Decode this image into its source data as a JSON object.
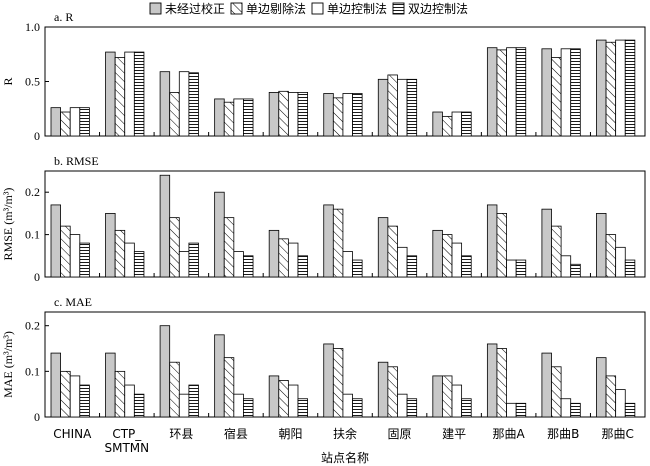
{
  "chart_data": {
    "type": "bar",
    "xlabel": "站点名称",
    "categories": [
      "CHINA",
      "CTP_\nSMTMN",
      "环县",
      "宿县",
      "朝阳",
      "扶余",
      "固原",
      "建平",
      "那曲A",
      "那曲B",
      "那曲C"
    ],
    "legend": {
      "placement": "top",
      "entries": [
        "未经过校正",
        "单边剔除法",
        "单边控制法",
        "双边控制法"
      ]
    },
    "series_styles": [
      {
        "fill": "#c8c8c8",
        "pattern": "solid"
      },
      {
        "fill": "#ffffff",
        "pattern": "diagonal"
      },
      {
        "fill": "#ffffff",
        "pattern": "none"
      },
      {
        "fill": "#ffffff",
        "pattern": "horizontal"
      }
    ],
    "panels": [
      {
        "title": "a. R",
        "ylabel": "R",
        "ylim": [
          0,
          1.0
        ],
        "yticks": [
          "0",
          "0.5",
          "1.0"
        ],
        "ytick_values": [
          0,
          0.5,
          1.0
        ],
        "series": [
          {
            "name": "未经过校正",
            "values": [
              0.26,
              0.77,
              0.59,
              0.34,
              0.4,
              0.39,
              0.52,
              0.22,
              0.81,
              0.8,
              0.88
            ]
          },
          {
            "name": "单边剔除法",
            "values": [
              0.22,
              0.72,
              0.4,
              0.31,
              0.41,
              0.35,
              0.56,
              0.18,
              0.79,
              0.72,
              0.86
            ]
          },
          {
            "name": "单边控制法",
            "values": [
              0.26,
              0.77,
              0.59,
              0.34,
              0.4,
              0.39,
              0.52,
              0.22,
              0.81,
              0.8,
              0.88
            ]
          },
          {
            "name": "双边控制法",
            "values": [
              0.26,
              0.77,
              0.58,
              0.34,
              0.4,
              0.39,
              0.52,
              0.22,
              0.81,
              0.8,
              0.88
            ]
          }
        ]
      },
      {
        "title": "b. RMSE",
        "ylabel": "RMSE (m³/m³)",
        "ylim": [
          0,
          0.25
        ],
        "yticks": [
          "0",
          "0.1",
          "0.2"
        ],
        "ytick_values": [
          0,
          0.1,
          0.2
        ],
        "series": [
          {
            "name": "未经过校正",
            "values": [
              0.17,
              0.15,
              0.24,
              0.2,
              0.11,
              0.17,
              0.14,
              0.11,
              0.17,
              0.16,
              0.15
            ]
          },
          {
            "name": "单边剔除法",
            "values": [
              0.12,
              0.11,
              0.14,
              0.14,
              0.09,
              0.16,
              0.12,
              0.1,
              0.15,
              0.12,
              0.1
            ]
          },
          {
            "name": "单边控制法",
            "values": [
              0.1,
              0.08,
              0.06,
              0.06,
              0.08,
              0.06,
              0.07,
              0.08,
              0.04,
              0.05,
              0.07
            ]
          },
          {
            "name": "双边控制法",
            "values": [
              0.08,
              0.06,
              0.08,
              0.05,
              0.05,
              0.04,
              0.05,
              0.05,
              0.04,
              0.03,
              0.04
            ]
          }
        ]
      },
      {
        "title": "c. MAE",
        "ylabel": "MAE (m³/m³)",
        "ylim": [
          0,
          0.23
        ],
        "yticks": [
          "0",
          "0.1",
          "0.2"
        ],
        "ytick_values": [
          0,
          0.1,
          0.2
        ],
        "series": [
          {
            "name": "未经过校正",
            "values": [
              0.14,
              0.14,
              0.2,
              0.18,
              0.09,
              0.16,
              0.12,
              0.09,
              0.16,
              0.14,
              0.13
            ]
          },
          {
            "name": "单边剔除法",
            "values": [
              0.1,
              0.1,
              0.12,
              0.13,
              0.08,
              0.15,
              0.11,
              0.09,
              0.15,
              0.11,
              0.09
            ]
          },
          {
            "name": "单边控制法",
            "values": [
              0.09,
              0.07,
              0.05,
              0.05,
              0.07,
              0.05,
              0.05,
              0.07,
              0.03,
              0.04,
              0.06
            ]
          },
          {
            "name": "双边控制法",
            "values": [
              0.07,
              0.05,
              0.07,
              0.04,
              0.04,
              0.04,
              0.04,
              0.04,
              0.03,
              0.03,
              0.03
            ]
          }
        ]
      }
    ]
  }
}
